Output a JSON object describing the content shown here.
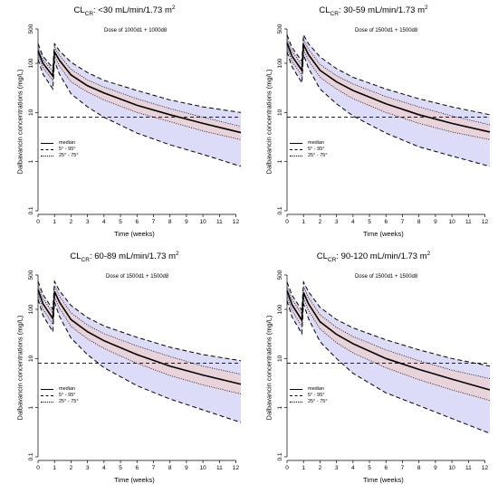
{
  "chart_data": [
    {
      "type": "line",
      "title": "CL_CR: <30 mL/min/1.73 m²",
      "title_main": "CL",
      "title_sub": "CR",
      "title_rest": ": <30 mL/min/1.73 m",
      "title_sup": "2",
      "dose": "Dose of 1000d1 + 1000d8",
      "xlabel": "Time (weeks)",
      "ylabel": "Dalbavancin concentrations (mg/L)",
      "xlim": [
        0,
        12.3
      ],
      "ylim": [
        0.1,
        500
      ],
      "yscale": "log",
      "xticks": [
        "0",
        "1",
        "2",
        "3",
        "4",
        "5",
        "6",
        "7",
        "8",
        "9",
        "10",
        "11",
        "12"
      ],
      "yticks": [
        "0.1",
        "1",
        "10",
        "100",
        "500"
      ],
      "threshold": 8,
      "series": [
        {
          "name": "median",
          "x": [
            0,
            0.3,
            0.9,
            1.0,
            1.3,
            2,
            3,
            4,
            6,
            8,
            10,
            12.3
          ],
          "values": [
            180,
            100,
            55,
            170,
            115,
            58,
            35,
            25,
            14,
            9,
            6,
            3.9
          ]
        },
        {
          "name": "5° - 95°",
          "x": [
            0,
            0.3,
            0.9,
            1.0,
            1.3,
            2,
            3,
            4,
            6,
            8,
            10,
            12.3
          ],
          "values": [
            250,
            140,
            80,
            250,
            180,
            105,
            65,
            45,
            28,
            18,
            13,
            10
          ]
        },
        {
          "name": "5° - 95°",
          "x": [
            0,
            0.3,
            0.9,
            1.0,
            1.3,
            2,
            3,
            4,
            6,
            8,
            10,
            12.3
          ],
          "values": [
            120,
            60,
            30,
            110,
            60,
            24,
            13,
            8,
            3.8,
            2.2,
            1.4,
            0.8
          ]
        },
        {
          "name": "25° - 75°",
          "x": [
            0,
            0.3,
            0.9,
            1.0,
            1.3,
            2,
            3,
            4,
            6,
            8,
            10,
            12.3
          ],
          "values": [
            210,
            120,
            68,
            210,
            145,
            75,
            46,
            33,
            19,
            12,
            8,
            5.2
          ]
        },
        {
          "name": "25° - 75°",
          "x": [
            0,
            0.3,
            0.9,
            1.0,
            1.3,
            2,
            3,
            4,
            6,
            8,
            10,
            12.3
          ],
          "values": [
            150,
            82,
            44,
            140,
            88,
            42,
            26,
            18,
            10,
            6.5,
            4.2,
            2.8
          ]
        }
      ]
    },
    {
      "type": "line",
      "title": "CL_CR: 30-59 mL/min/1.73 m²",
      "title_main": "CL",
      "title_sub": "CR",
      "title_rest": ": 30-59 mL/min/1.73 m",
      "title_sup": "2",
      "dose": "Dose of 1500d1 + 1500d8",
      "xlabel": "Time (weeks)",
      "ylabel": "Dalbavancin concentrations (mg/L)",
      "xlim": [
        0,
        12.3
      ],
      "ylim": [
        0.1,
        500
      ],
      "yscale": "log",
      "xticks": [
        "0",
        "1",
        "2",
        "3",
        "4",
        "5",
        "6",
        "7",
        "8",
        "9",
        "10",
        "11",
        "12"
      ],
      "yticks": [
        "0.1",
        "1",
        "10",
        "100",
        "500"
      ],
      "threshold": 8,
      "series": [
        {
          "name": "median",
          "x": [
            0,
            0.3,
            0.9,
            1.0,
            1.3,
            2,
            3,
            4,
            6,
            8,
            10,
            12.3
          ],
          "values": [
            260,
            140,
            72,
            240,
            150,
            72,
            42,
            28,
            15,
            9,
            6,
            4
          ]
        },
        {
          "name": "5° - 95°",
          "x": [
            0,
            0.3,
            0.9,
            1.0,
            1.3,
            2,
            3,
            4,
            6,
            8,
            10,
            12.3
          ],
          "values": [
            380,
            210,
            110,
            380,
            250,
            135,
            78,
            52,
            30,
            19,
            13,
            9
          ]
        },
        {
          "name": "5° - 95°",
          "x": [
            0,
            0.3,
            0.9,
            1.0,
            1.3,
            2,
            3,
            4,
            6,
            8,
            10,
            12.3
          ],
          "values": [
            170,
            85,
            40,
            150,
            80,
            30,
            15,
            8.5,
            3.8,
            2,
            1.3,
            0.8
          ]
        },
        {
          "name": "25° - 75°",
          "x": [
            0,
            0.3,
            0.9,
            1.0,
            1.3,
            2,
            3,
            4,
            6,
            8,
            10,
            12.3
          ],
          "values": [
            310,
            175,
            92,
            310,
            195,
            95,
            56,
            38,
            21,
            13,
            8.5,
            5.6
          ]
        },
        {
          "name": "25° - 75°",
          "x": [
            0,
            0.3,
            0.9,
            1.0,
            1.3,
            2,
            3,
            4,
            6,
            8,
            10,
            12.3
          ],
          "values": [
            210,
            110,
            56,
            190,
            115,
            52,
            30,
            19,
            10,
            6,
            4,
            2.8
          ]
        }
      ]
    },
    {
      "type": "line",
      "title": "CL_CR: 60-89 mL/min/1.73 m²",
      "title_main": "CL",
      "title_sub": "CR",
      "title_rest": ": 60-89 mL/min/1.73 m",
      "title_sup": "2",
      "dose": "Dose of 1500d1 + 1500d8",
      "xlabel": "Time (weeks)",
      "ylabel": "Dalbavancin concentrations (mg/L)",
      "xlim": [
        0,
        12.3
      ],
      "ylim": [
        0.1,
        500
      ],
      "yscale": "log",
      "xticks": [
        "0",
        "1",
        "2",
        "3",
        "4",
        "5",
        "6",
        "7",
        "8",
        "9",
        "10",
        "11",
        "12"
      ],
      "yticks": [
        "0.1",
        "1",
        "10",
        "100",
        "500"
      ],
      "threshold": 8,
      "series": [
        {
          "name": "median",
          "x": [
            0,
            0.3,
            0.9,
            1.0,
            1.3,
            2,
            3,
            4,
            6,
            8,
            10,
            12.3
          ],
          "values": [
            250,
            130,
            65,
            230,
            140,
            62,
            35,
            23,
            12,
            7,
            4.6,
            3
          ]
        },
        {
          "name": "5° - 95°",
          "x": [
            0,
            0.3,
            0.9,
            1.0,
            1.3,
            2,
            3,
            4,
            6,
            8,
            10,
            12.3
          ],
          "values": [
            370,
            200,
            100,
            370,
            240,
            120,
            68,
            46,
            27,
            17,
            12,
            9
          ]
        },
        {
          "name": "5° - 95°",
          "x": [
            0,
            0.3,
            0.9,
            1.0,
            1.3,
            2,
            3,
            4,
            6,
            8,
            10,
            12.3
          ],
          "values": [
            160,
            75,
            35,
            140,
            72,
            26,
            12,
            6.5,
            2.8,
            1.5,
            0.9,
            0.5
          ]
        },
        {
          "name": "25° - 75°",
          "x": [
            0,
            0.3,
            0.9,
            1.0,
            1.3,
            2,
            3,
            4,
            6,
            8,
            10,
            12.3
          ],
          "values": [
            300,
            165,
            85,
            300,
            185,
            85,
            48,
            32,
            18,
            11,
            7,
            4.8
          ]
        },
        {
          "name": "25° - 75°",
          "x": [
            0,
            0.3,
            0.9,
            1.0,
            1.3,
            2,
            3,
            4,
            6,
            8,
            10,
            12.3
          ],
          "values": [
            200,
            100,
            50,
            180,
            105,
            45,
            25,
            16,
            8,
            4.5,
            2.9,
            1.9
          ]
        }
      ]
    },
    {
      "type": "line",
      "title": "CL_CR: 90-120 mL/min/1.73 m²",
      "title_main": "CL",
      "title_sub": "CR",
      "title_rest": ": 90-120 mL/min/1.73 m",
      "title_sup": "2",
      "dose": "Dose of 1500d1 + 1500d8",
      "xlabel": "Time (weeks)",
      "ylabel": "Dalbavancin concentrations (mg/L)",
      "xlim": [
        0,
        12.3
      ],
      "ylim": [
        0.1,
        500
      ],
      "yscale": "log",
      "xticks": [
        "0",
        "1",
        "2",
        "3",
        "4",
        "5",
        "6",
        "7",
        "8",
        "9",
        "10",
        "11",
        "12"
      ],
      "yticks": [
        "0.1",
        "1",
        "10",
        "100",
        "500"
      ],
      "threshold": 8,
      "series": [
        {
          "name": "median",
          "x": [
            0,
            0.3,
            0.9,
            1.0,
            1.3,
            2,
            3,
            4,
            6,
            8,
            10,
            12.3
          ],
          "values": [
            240,
            125,
            60,
            220,
            130,
            56,
            31,
            20,
            10,
            6,
            3.8,
            2.3
          ]
        },
        {
          "name": "5° - 95°",
          "x": [
            0,
            0.3,
            0.9,
            1.0,
            1.3,
            2,
            3,
            4,
            6,
            8,
            10,
            12.3
          ],
          "values": [
            360,
            195,
            96,
            360,
            230,
            110,
            62,
            42,
            24,
            15,
            10,
            7
          ]
        },
        {
          "name": "5° - 95°",
          "x": [
            0,
            0.3,
            0.9,
            1.0,
            1.3,
            2,
            3,
            4,
            6,
            8,
            10,
            12.3
          ],
          "values": [
            150,
            70,
            32,
            130,
            65,
            22,
            10,
            5,
            2,
            1.1,
            0.6,
            0.3
          ]
        },
        {
          "name": "25° - 75°",
          "x": [
            0,
            0.3,
            0.9,
            1.0,
            1.3,
            2,
            3,
            4,
            6,
            8,
            10,
            12.3
          ],
          "values": [
            290,
            160,
            80,
            290,
            175,
            78,
            43,
            28,
            15,
            9,
            5.8,
            3.9
          ]
        },
        {
          "name": "25° - 75°",
          "x": [
            0,
            0.3,
            0.9,
            1.0,
            1.3,
            2,
            3,
            4,
            6,
            8,
            10,
            12.3
          ],
          "values": [
            190,
            95,
            45,
            170,
            95,
            40,
            21,
            13,
            6.5,
            3.7,
            2.3,
            1.4
          ]
        }
      ]
    }
  ],
  "legend": {
    "median": "median",
    "p5_95": "5° - 95°",
    "p25_75": "25° - 75°"
  },
  "colors": {
    "outer_band": "#dcdcf8",
    "inner_band": "#e7d3d9",
    "line": "#000000"
  }
}
